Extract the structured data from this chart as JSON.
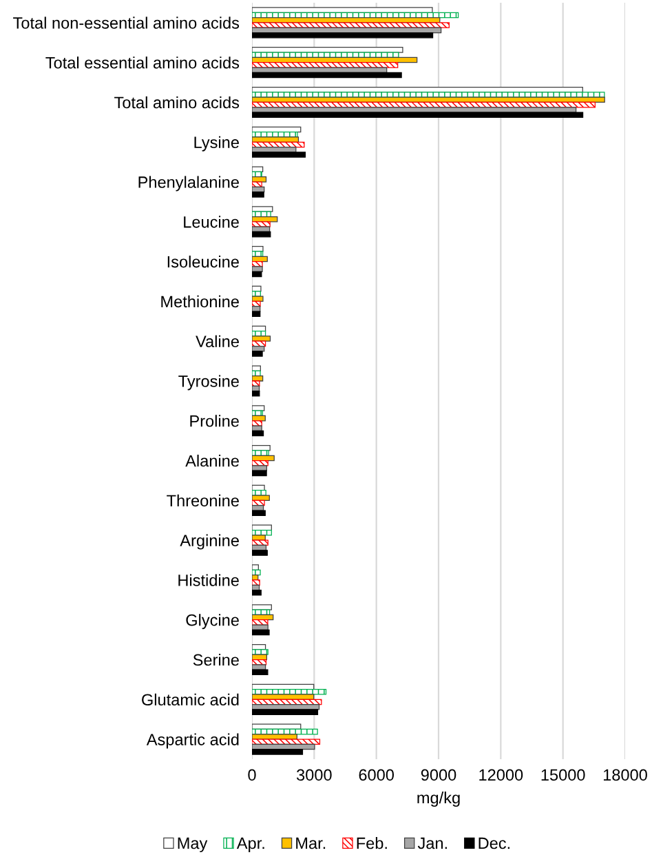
{
  "chart_data": {
    "type": "bar",
    "orientation": "horizontal",
    "categories": [
      "Total non-essential amino acids",
      "Total essential amino acids",
      "Total amino acids",
      "Lysine",
      "Phenylalanine",
      "Leucine",
      "Isoleucine",
      "Methionine",
      "Valine",
      "Tyrosine",
      "Proline",
      "Alanine",
      "Threonine",
      "Arginine",
      "Histidine",
      "Glycine",
      "Serine",
      "Glutamic acid",
      "Aspartic acid"
    ],
    "series": [
      {
        "name": "May",
        "color": "#ffffff",
        "values": [
          8700,
          7270,
          15950,
          2350,
          520,
          990,
          530,
          430,
          650,
          410,
          590,
          870,
          600,
          940,
          310,
          940,
          650,
          2980,
          2350
        ]
      },
      {
        "name": "Apr.",
        "color": "#00b050",
        "values": [
          9950,
          7070,
          17000,
          2190,
          470,
          900,
          520,
          410,
          650,
          400,
          510,
          800,
          670,
          940,
          400,
          850,
          770,
          3570,
          3160
        ]
      },
      {
        "name": "Mar.",
        "color": "#ffc000",
        "values": [
          9060,
          7960,
          17010,
          2240,
          680,
          1220,
          740,
          530,
          880,
          520,
          640,
          1070,
          840,
          640,
          290,
          1020,
          710,
          2980,
          2170
        ]
      },
      {
        "name": "Feb.",
        "color": "#ff0000",
        "values": [
          9510,
          7030,
          16550,
          2520,
          470,
          870,
          500,
          400,
          650,
          360,
          470,
          770,
          600,
          770,
          370,
          760,
          680,
          3350,
          3270
        ]
      },
      {
        "name": "Jan.",
        "color": "#a6a6a6",
        "values": [
          9120,
          6500,
          15630,
          2120,
          590,
          850,
          500,
          390,
          590,
          350,
          470,
          710,
          550,
          680,
          350,
          770,
          650,
          3240,
          3020
        ]
      },
      {
        "name": "Dec.",
        "color": "#000000",
        "values": [
          8720,
          7210,
          15960,
          2570,
          570,
          890,
          460,
          390,
          500,
          360,
          550,
          700,
          640,
          740,
          440,
          830,
          760,
          3170,
          2440
        ]
      }
    ],
    "xlim": [
      0,
      18000
    ],
    "xticks": [
      0,
      3000,
      6000,
      9000,
      12000,
      15000,
      18000
    ],
    "xlabel": "mg/kg",
    "grid": "x",
    "legend": "bottom"
  }
}
